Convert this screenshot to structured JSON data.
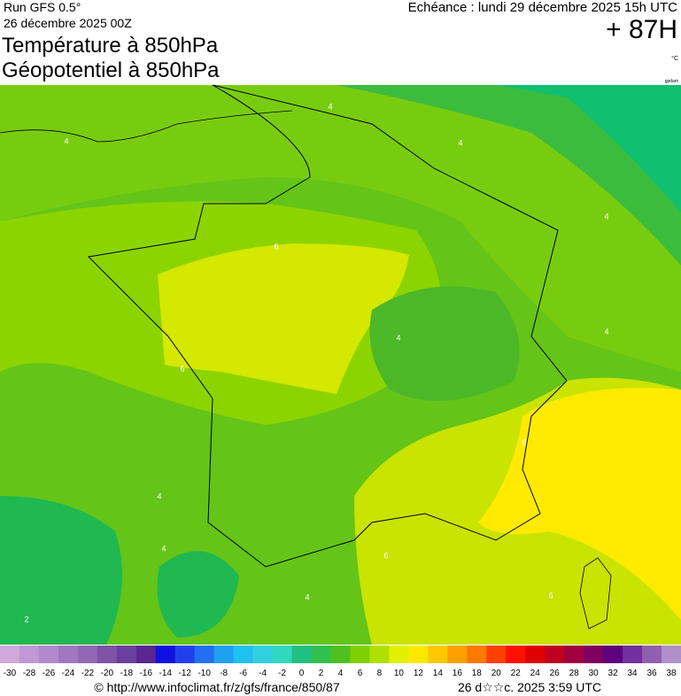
{
  "header": {
    "run": "Run GFS 0.5°",
    "date": "26 décembre 2025 00Z",
    "title1": "Température à 850hPa",
    "title2": "Géopotentiel à 850hPa",
    "echeance": "Echéance : lundi 29 décembre 2025 15h UTC",
    "lead": "+ 87H",
    "unit": "°C",
    "source_tag": "gpdam"
  },
  "map": {
    "contour_labels": [
      4,
      4,
      4,
      4,
      6,
      4,
      4,
      6,
      6,
      4,
      4,
      6,
      4,
      6,
      2
    ]
  },
  "legend": {
    "ticks": [
      -30,
      -28,
      -26,
      -24,
      -22,
      -20,
      -18,
      -16,
      -14,
      -12,
      -10,
      -8,
      -6,
      -4,
      -2,
      0,
      2,
      4,
      6,
      8,
      10,
      12,
      14,
      16,
      18,
      20,
      22,
      24,
      26,
      28,
      30,
      32,
      34,
      36,
      38
    ],
    "colors": [
      "#d0a8dc",
      "#c098d4",
      "#b088cc",
      "#a078c0",
      "#9068b4",
      "#7c54a8",
      "#6a409c",
      "#582890",
      "#1010e0",
      "#2040f0",
      "#2070f0",
      "#20a0f0",
      "#20c0f0",
      "#30d0e0",
      "#30d8c0",
      "#20c080",
      "#30c050",
      "#50c020",
      "#80d000",
      "#b0e000",
      "#e0f000",
      "#ffe800",
      "#ffc800",
      "#ffa000",
      "#ff7800",
      "#ff4000",
      "#ff1000",
      "#e00000",
      "#c00020",
      "#a00040",
      "#800060",
      "#600080",
      "#7030a0",
      "#9060b0",
      "#b090c8"
    ]
  },
  "footer": {
    "url": "© http://www.infoclimat.fr/z/gfs/france/850/87",
    "stamp": "26 d☆☆c. 2025  3:59 UTC"
  }
}
